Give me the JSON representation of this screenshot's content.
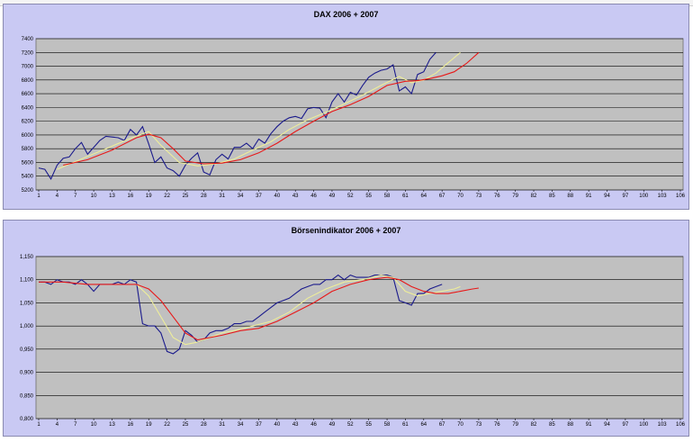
{
  "chart_data": [
    {
      "type": "line",
      "title": "DAX 2006 + 2007",
      "xlabel": "",
      "ylabel": "",
      "x_ticks": [
        "1",
        "4",
        "7",
        "10",
        "13",
        "16",
        "19",
        "22",
        "25",
        "28",
        "31",
        "34",
        "37",
        "40",
        "43",
        "46",
        "49",
        "52",
        "55",
        "58",
        "61",
        "64",
        "67",
        "70",
        "73",
        "76",
        "79",
        "82",
        "85",
        "88",
        "91",
        "94",
        "97",
        "100",
        "103",
        "106"
      ],
      "y_ticks": [
        "5200",
        "5400",
        "5600",
        "5800",
        "6000",
        "6200",
        "6400",
        "6600",
        "6800",
        "7000",
        "7200",
        "7400"
      ],
      "xlim": [
        1,
        106
      ],
      "ylim": [
        5200,
        7400
      ],
      "grid": "horizontal",
      "legend": "none",
      "series": [
        {
          "color": "#1a1a8c",
          "points": [
            [
              1,
              5520
            ],
            [
              2,
              5500
            ],
            [
              3,
              5360
            ],
            [
              4,
              5560
            ],
            [
              5,
              5660
            ],
            [
              6,
              5680
            ],
            [
              7,
              5800
            ],
            [
              8,
              5890
            ],
            [
              9,
              5720
            ],
            [
              10,
              5820
            ],
            [
              11,
              5920
            ],
            [
              12,
              5980
            ],
            [
              13,
              5970
            ],
            [
              14,
              5960
            ],
            [
              15,
              5920
            ],
            [
              16,
              6080
            ],
            [
              17,
              6000
            ],
            [
              18,
              6120
            ],
            [
              19,
              5870
            ],
            [
              20,
              5600
            ],
            [
              21,
              5680
            ],
            [
              22,
              5520
            ],
            [
              23,
              5480
            ],
            [
              24,
              5400
            ],
            [
              25,
              5560
            ],
            [
              26,
              5660
            ],
            [
              27,
              5740
            ],
            [
              28,
              5460
            ],
            [
              29,
              5420
            ],
            [
              30,
              5640
            ],
            [
              31,
              5720
            ],
            [
              32,
              5650
            ],
            [
              33,
              5820
            ],
            [
              34,
              5820
            ],
            [
              35,
              5880
            ],
            [
              36,
              5800
            ],
            [
              37,
              5940
            ],
            [
              38,
              5880
            ],
            [
              39,
              6020
            ],
            [
              40,
              6120
            ],
            [
              41,
              6200
            ],
            [
              42,
              6250
            ],
            [
              43,
              6270
            ],
            [
              44,
              6240
            ],
            [
              45,
              6380
            ],
            [
              46,
              6400
            ],
            [
              47,
              6390
            ],
            [
              48,
              6250
            ],
            [
              49,
              6480
            ],
            [
              50,
              6600
            ],
            [
              51,
              6480
            ],
            [
              52,
              6620
            ],
            [
              53,
              6580
            ],
            [
              54,
              6720
            ],
            [
              55,
              6840
            ],
            [
              56,
              6900
            ],
            [
              57,
              6940
            ],
            [
              58,
              6960
            ],
            [
              59,
              7020
            ],
            [
              60,
              6640
            ],
            [
              61,
              6700
            ],
            [
              62,
              6600
            ],
            [
              63,
              6880
            ],
            [
              64,
              6920
            ],
            [
              65,
              7100
            ],
            [
              66,
              7200
            ]
          ]
        },
        {
          "color": "#eeee99",
          "points": [
            [
              4,
              5500
            ],
            [
              8,
              5650
            ],
            [
              12,
              5800
            ],
            [
              16,
              5950
            ],
            [
              19,
              6050
            ],
            [
              21,
              5850
            ],
            [
              24,
              5600
            ],
            [
              27,
              5550
            ],
            [
              30,
              5580
            ],
            [
              33,
              5650
            ],
            [
              36,
              5780
            ],
            [
              39,
              5900
            ],
            [
              42,
              6080
            ],
            [
              45,
              6220
            ],
            [
              48,
              6330
            ],
            [
              51,
              6450
            ],
            [
              54,
              6580
            ],
            [
              57,
              6720
            ],
            [
              60,
              6850
            ],
            [
              62,
              6760
            ],
            [
              64,
              6800
            ],
            [
              66,
              6900
            ],
            [
              68,
              7050
            ],
            [
              70,
              7200
            ]
          ]
        },
        {
          "color": "#e81818",
          "points": [
            [
              5,
              5560
            ],
            [
              9,
              5640
            ],
            [
              13,
              5780
            ],
            [
              17,
              5960
            ],
            [
              19,
              6010
            ],
            [
              21,
              5960
            ],
            [
              23,
              5800
            ],
            [
              25,
              5620
            ],
            [
              28,
              5580
            ],
            [
              31,
              5590
            ],
            [
              34,
              5640
            ],
            [
              37,
              5740
            ],
            [
              40,
              5880
            ],
            [
              43,
              6050
            ],
            [
              46,
              6200
            ],
            [
              49,
              6340
            ],
            [
              52,
              6440
            ],
            [
              55,
              6560
            ],
            [
              58,
              6720
            ],
            [
              61,
              6780
            ],
            [
              63,
              6790
            ],
            [
              65,
              6820
            ],
            [
              67,
              6860
            ],
            [
              69,
              6920
            ],
            [
              71,
              7040
            ],
            [
              73,
              7200
            ]
          ]
        }
      ]
    },
    {
      "type": "line",
      "title": "Börsenindikator 2006 + 2007",
      "xlabel": "",
      "ylabel": "",
      "x_ticks": [
        "1",
        "4",
        "7",
        "10",
        "13",
        "16",
        "19",
        "22",
        "25",
        "28",
        "31",
        "34",
        "37",
        "40",
        "43",
        "46",
        "49",
        "52",
        "55",
        "58",
        "61",
        "64",
        "67",
        "70",
        "73",
        "76",
        "79",
        "82",
        "85",
        "88",
        "91",
        "94",
        "97",
        "100",
        "103",
        "106"
      ],
      "y_ticks": [
        "0,800",
        "0,850",
        "0,900",
        "0,950",
        "1,000",
        "1,050",
        "1,100",
        "1,150"
      ],
      "xlim": [
        1,
        106
      ],
      "ylim": [
        0.8,
        1.15
      ],
      "grid": "horizontal",
      "legend": "none",
      "series": [
        {
          "color": "#1a1a8c",
          "points": [
            [
              1,
              1.095
            ],
            [
              2,
              1.095
            ],
            [
              3,
              1.09
            ],
            [
              4,
              1.1
            ],
            [
              5,
              1.095
            ],
            [
              6,
              1.095
            ],
            [
              7,
              1.09
            ],
            [
              8,
              1.1
            ],
            [
              9,
              1.09
            ],
            [
              10,
              1.075
            ],
            [
              11,
              1.09
            ],
            [
              12,
              1.09
            ],
            [
              13,
              1.09
            ],
            [
              14,
              1.095
            ],
            [
              15,
              1.09
            ],
            [
              16,
              1.1
            ],
            [
              17,
              1.095
            ],
            [
              18,
              1.005
            ],
            [
              19,
              1.0
            ],
            [
              20,
              1.0
            ],
            [
              21,
              0.985
            ],
            [
              22,
              0.945
            ],
            [
              23,
              0.94
            ],
            [
              24,
              0.95
            ],
            [
              25,
              0.99
            ],
            [
              26,
              0.98
            ],
            [
              27,
              0.965
            ],
            [
              28,
              0.97
            ],
            [
              29,
              0.985
            ],
            [
              30,
              0.99
            ],
            [
              31,
              0.99
            ],
            [
              32,
              0.995
            ],
            [
              33,
              1.005
            ],
            [
              34,
              1.005
            ],
            [
              35,
              1.01
            ],
            [
              36,
              1.01
            ],
            [
              37,
              1.02
            ],
            [
              38,
              1.03
            ],
            [
              39,
              1.04
            ],
            [
              40,
              1.05
            ],
            [
              41,
              1.055
            ],
            [
              42,
              1.06
            ],
            [
              43,
              1.07
            ],
            [
              44,
              1.08
            ],
            [
              45,
              1.085
            ],
            [
              46,
              1.09
            ],
            [
              47,
              1.09
            ],
            [
              48,
              1.1
            ],
            [
              49,
              1.1
            ],
            [
              50,
              1.11
            ],
            [
              51,
              1.1
            ],
            [
              52,
              1.11
            ],
            [
              53,
              1.105
            ],
            [
              54,
              1.105
            ],
            [
              55,
              1.105
            ],
            [
              56,
              1.11
            ],
            [
              57,
              1.11
            ],
            [
              58,
              1.11
            ],
            [
              59,
              1.105
            ],
            [
              60,
              1.055
            ],
            [
              61,
              1.05
            ],
            [
              62,
              1.045
            ],
            [
              63,
              1.07
            ],
            [
              64,
              1.07
            ],
            [
              65,
              1.08
            ],
            [
              66,
              1.085
            ],
            [
              67,
              1.09
            ]
          ]
        },
        {
          "color": "#eeee99",
          "points": [
            [
              17,
              1.09
            ],
            [
              19,
              1.065
            ],
            [
              21,
              1.02
            ],
            [
              23,
              0.975
            ],
            [
              25,
              0.96
            ],
            [
              27,
              0.965
            ],
            [
              29,
              0.975
            ],
            [
              31,
              0.985
            ],
            [
              33,
              0.99
            ],
            [
              36,
              1.0
            ],
            [
              39,
              1.01
            ],
            [
              42,
              1.03
            ],
            [
              45,
              1.06
            ],
            [
              48,
              1.08
            ],
            [
              51,
              1.095
            ],
            [
              54,
              1.1
            ],
            [
              57,
              1.11
            ],
            [
              59,
              1.105
            ],
            [
              61,
              1.075
            ],
            [
              63,
              1.065
            ],
            [
              65,
              1.07
            ],
            [
              67,
              1.075
            ],
            [
              69,
              1.08
            ],
            [
              70,
              1.085
            ]
          ]
        },
        {
          "color": "#e81818",
          "points": [
            [
              1,
              1.095
            ],
            [
              5,
              1.095
            ],
            [
              9,
              1.09
            ],
            [
              13,
              1.09
            ],
            [
              17,
              1.09
            ],
            [
              19,
              1.08
            ],
            [
              21,
              1.055
            ],
            [
              23,
              1.02
            ],
            [
              25,
              0.985
            ],
            [
              27,
              0.97
            ],
            [
              29,
              0.975
            ],
            [
              31,
              0.98
            ],
            [
              34,
              0.99
            ],
            [
              37,
              0.995
            ],
            [
              40,
              1.01
            ],
            [
              43,
              1.03
            ],
            [
              46,
              1.05
            ],
            [
              49,
              1.075
            ],
            [
              52,
              1.09
            ],
            [
              55,
              1.1
            ],
            [
              58,
              1.105
            ],
            [
              60,
              1.1
            ],
            [
              62,
              1.085
            ],
            [
              64,
              1.075
            ],
            [
              66,
              1.07
            ],
            [
              68,
              1.07
            ],
            [
              70,
              1.075
            ],
            [
              72,
              1.08
            ],
            [
              73,
              1.082
            ]
          ]
        }
      ]
    }
  ]
}
